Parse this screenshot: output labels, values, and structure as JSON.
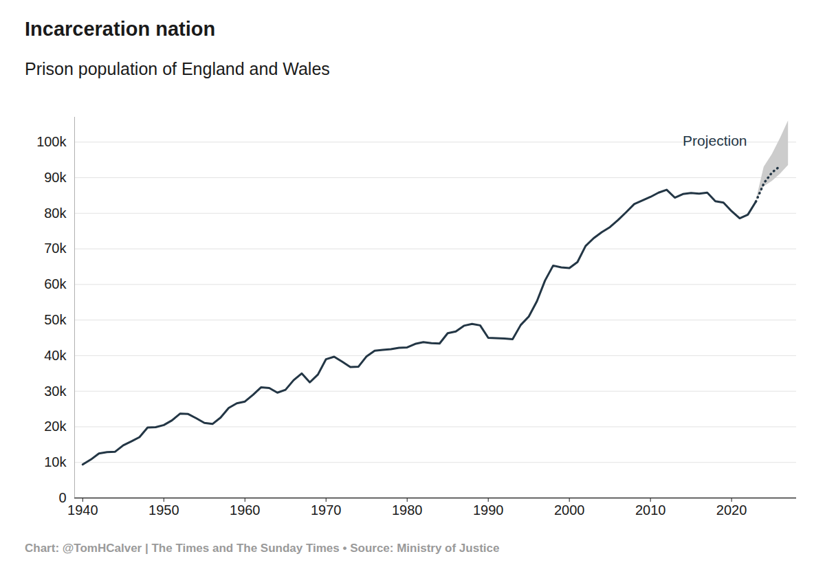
{
  "chart_data": {
    "type": "line",
    "title": "Incarceration nation",
    "subtitle": "Prison population of England and Wales",
    "caption": "Chart: @TomHCalver | The Times and The Sunday Times • Source: Ministry of Justice",
    "color": "#233645",
    "x": [
      1940,
      1941,
      1942,
      1943,
      1944,
      1945,
      1946,
      1947,
      1948,
      1949,
      1950,
      1951,
      1952,
      1953,
      1954,
      1955,
      1956,
      1957,
      1958,
      1959,
      1960,
      1961,
      1962,
      1963,
      1964,
      1965,
      1966,
      1967,
      1968,
      1969,
      1970,
      1971,
      1972,
      1973,
      1974,
      1975,
      1976,
      1977,
      1978,
      1979,
      1980,
      1981,
      1982,
      1983,
      1984,
      1985,
      1986,
      1987,
      1988,
      1989,
      1990,
      1991,
      1992,
      1993,
      1994,
      1995,
      1996,
      1997,
      1998,
      1999,
      2000,
      2001,
      2002,
      2003,
      2004,
      2005,
      2006,
      2007,
      2008,
      2009,
      2010,
      2011,
      2012,
      2013,
      2014,
      2015,
      2016,
      2017,
      2018,
      2019,
      2020,
      2021,
      2022,
      2023
    ],
    "values": [
      9400,
      10800,
      12500,
      12900,
      13000,
      14800,
      15900,
      17100,
      19800,
      19900,
      20500,
      21800,
      23700,
      23600,
      22400,
      21100,
      20800,
      22600,
      25300,
      26600,
      27100,
      29000,
      31100,
      30900,
      29600,
      30400,
      33100,
      35000,
      32500,
      34700,
      39000,
      39700,
      38300,
      36800,
      36900,
      39800,
      41400,
      41600,
      41800,
      42200,
      42300,
      43300,
      43800,
      43500,
      43400,
      46300,
      46800,
      48400,
      48900,
      48500,
      45000,
      44900,
      44800,
      44600,
      48600,
      51000,
      55300,
      61100,
      65300,
      64800,
      64600,
      66300,
      70800,
      73000,
      74700,
      76100,
      78100,
      80300,
      82600,
      83600,
      84600,
      85800,
      86600,
      84400,
      85400,
      85700,
      85500,
      85800,
      83400,
      83000,
      80600,
      78600,
      79600,
      83300
    ],
    "projection": {
      "label": "Projection",
      "color": "#233645",
      "line_style": "dotted",
      "x": [
        2023,
        2024,
        2025,
        2026,
        2027
      ],
      "values": [
        83300,
        88500,
        91500,
        93300,
        null
      ],
      "lower": [
        83300,
        87500,
        89000,
        91000,
        93500
      ],
      "upper": [
        83300,
        93000,
        96500,
        101000,
        106000
      ]
    },
    "xlim": [
      1939,
      2028
    ],
    "ylim": [
      0,
      107000
    ],
    "xticks": [
      1940,
      1950,
      1960,
      1970,
      1980,
      1990,
      2000,
      2010,
      2020
    ],
    "yticks": [
      0,
      {
        "value": 10000,
        "label": "10k"
      },
      {
        "value": 20000,
        "label": "20k"
      },
      {
        "value": 30000,
        "label": "30k"
      },
      {
        "value": 40000,
        "label": "40k"
      },
      {
        "value": 50000,
        "label": "50k"
      },
      {
        "value": 60000,
        "label": "60k"
      },
      {
        "value": 70000,
        "label": "70k"
      },
      {
        "value": 80000,
        "label": "80k"
      },
      {
        "value": 90000,
        "label": "90k"
      },
      {
        "value": 100000,
        "label": "100k"
      }
    ],
    "grid": true
  }
}
